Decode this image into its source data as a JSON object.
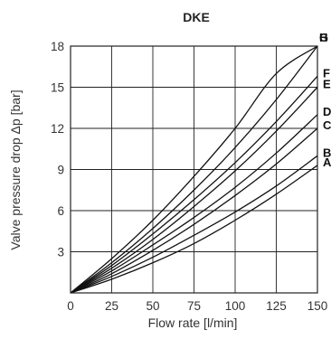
{
  "chart_data": {
    "type": "line",
    "title": "DKE",
    "xlabel": "Flow rate [l/min]",
    "ylabel": "Valve pressure drop Δp [bar]",
    "xlim": [
      0,
      150
    ],
    "ylim": [
      0,
      18
    ],
    "xticks": [
      0,
      25,
      50,
      75,
      100,
      125,
      150
    ],
    "yticks": [
      3,
      6,
      9,
      12,
      15,
      18
    ],
    "grid": true,
    "x": [
      0,
      25,
      50,
      75,
      100,
      125,
      150
    ],
    "series": [
      {
        "name": "A",
        "values": [
          0,
          1.0,
          2.2,
          3.6,
          5.3,
          7.2,
          9.3
        ]
      },
      {
        "name": "B",
        "values": [
          0,
          1.2,
          2.6,
          4.2,
          5.9,
          7.8,
          10.0
        ]
      },
      {
        "name": "C",
        "values": [
          0,
          1.4,
          3.1,
          5.0,
          7.1,
          9.4,
          12.0
        ]
      },
      {
        "name": "D",
        "values": [
          0,
          1.6,
          3.5,
          5.5,
          7.7,
          10.2,
          13.0
        ]
      },
      {
        "name": "E",
        "values": [
          0,
          1.8,
          3.9,
          6.3,
          8.9,
          11.8,
          15.0
        ]
      },
      {
        "name": "F",
        "values": [
          0,
          2.0,
          4.3,
          6.8,
          9.5,
          12.5,
          15.8
        ]
      },
      {
        "name": "G",
        "values": [
          0,
          2.2,
          4.7,
          7.5,
          10.6,
          14.1,
          18.0
        ]
      },
      {
        "name": "H",
        "values": [
          0,
          2.5,
          5.3,
          8.5,
          12.0,
          16.0,
          18.0
        ]
      }
    ]
  }
}
